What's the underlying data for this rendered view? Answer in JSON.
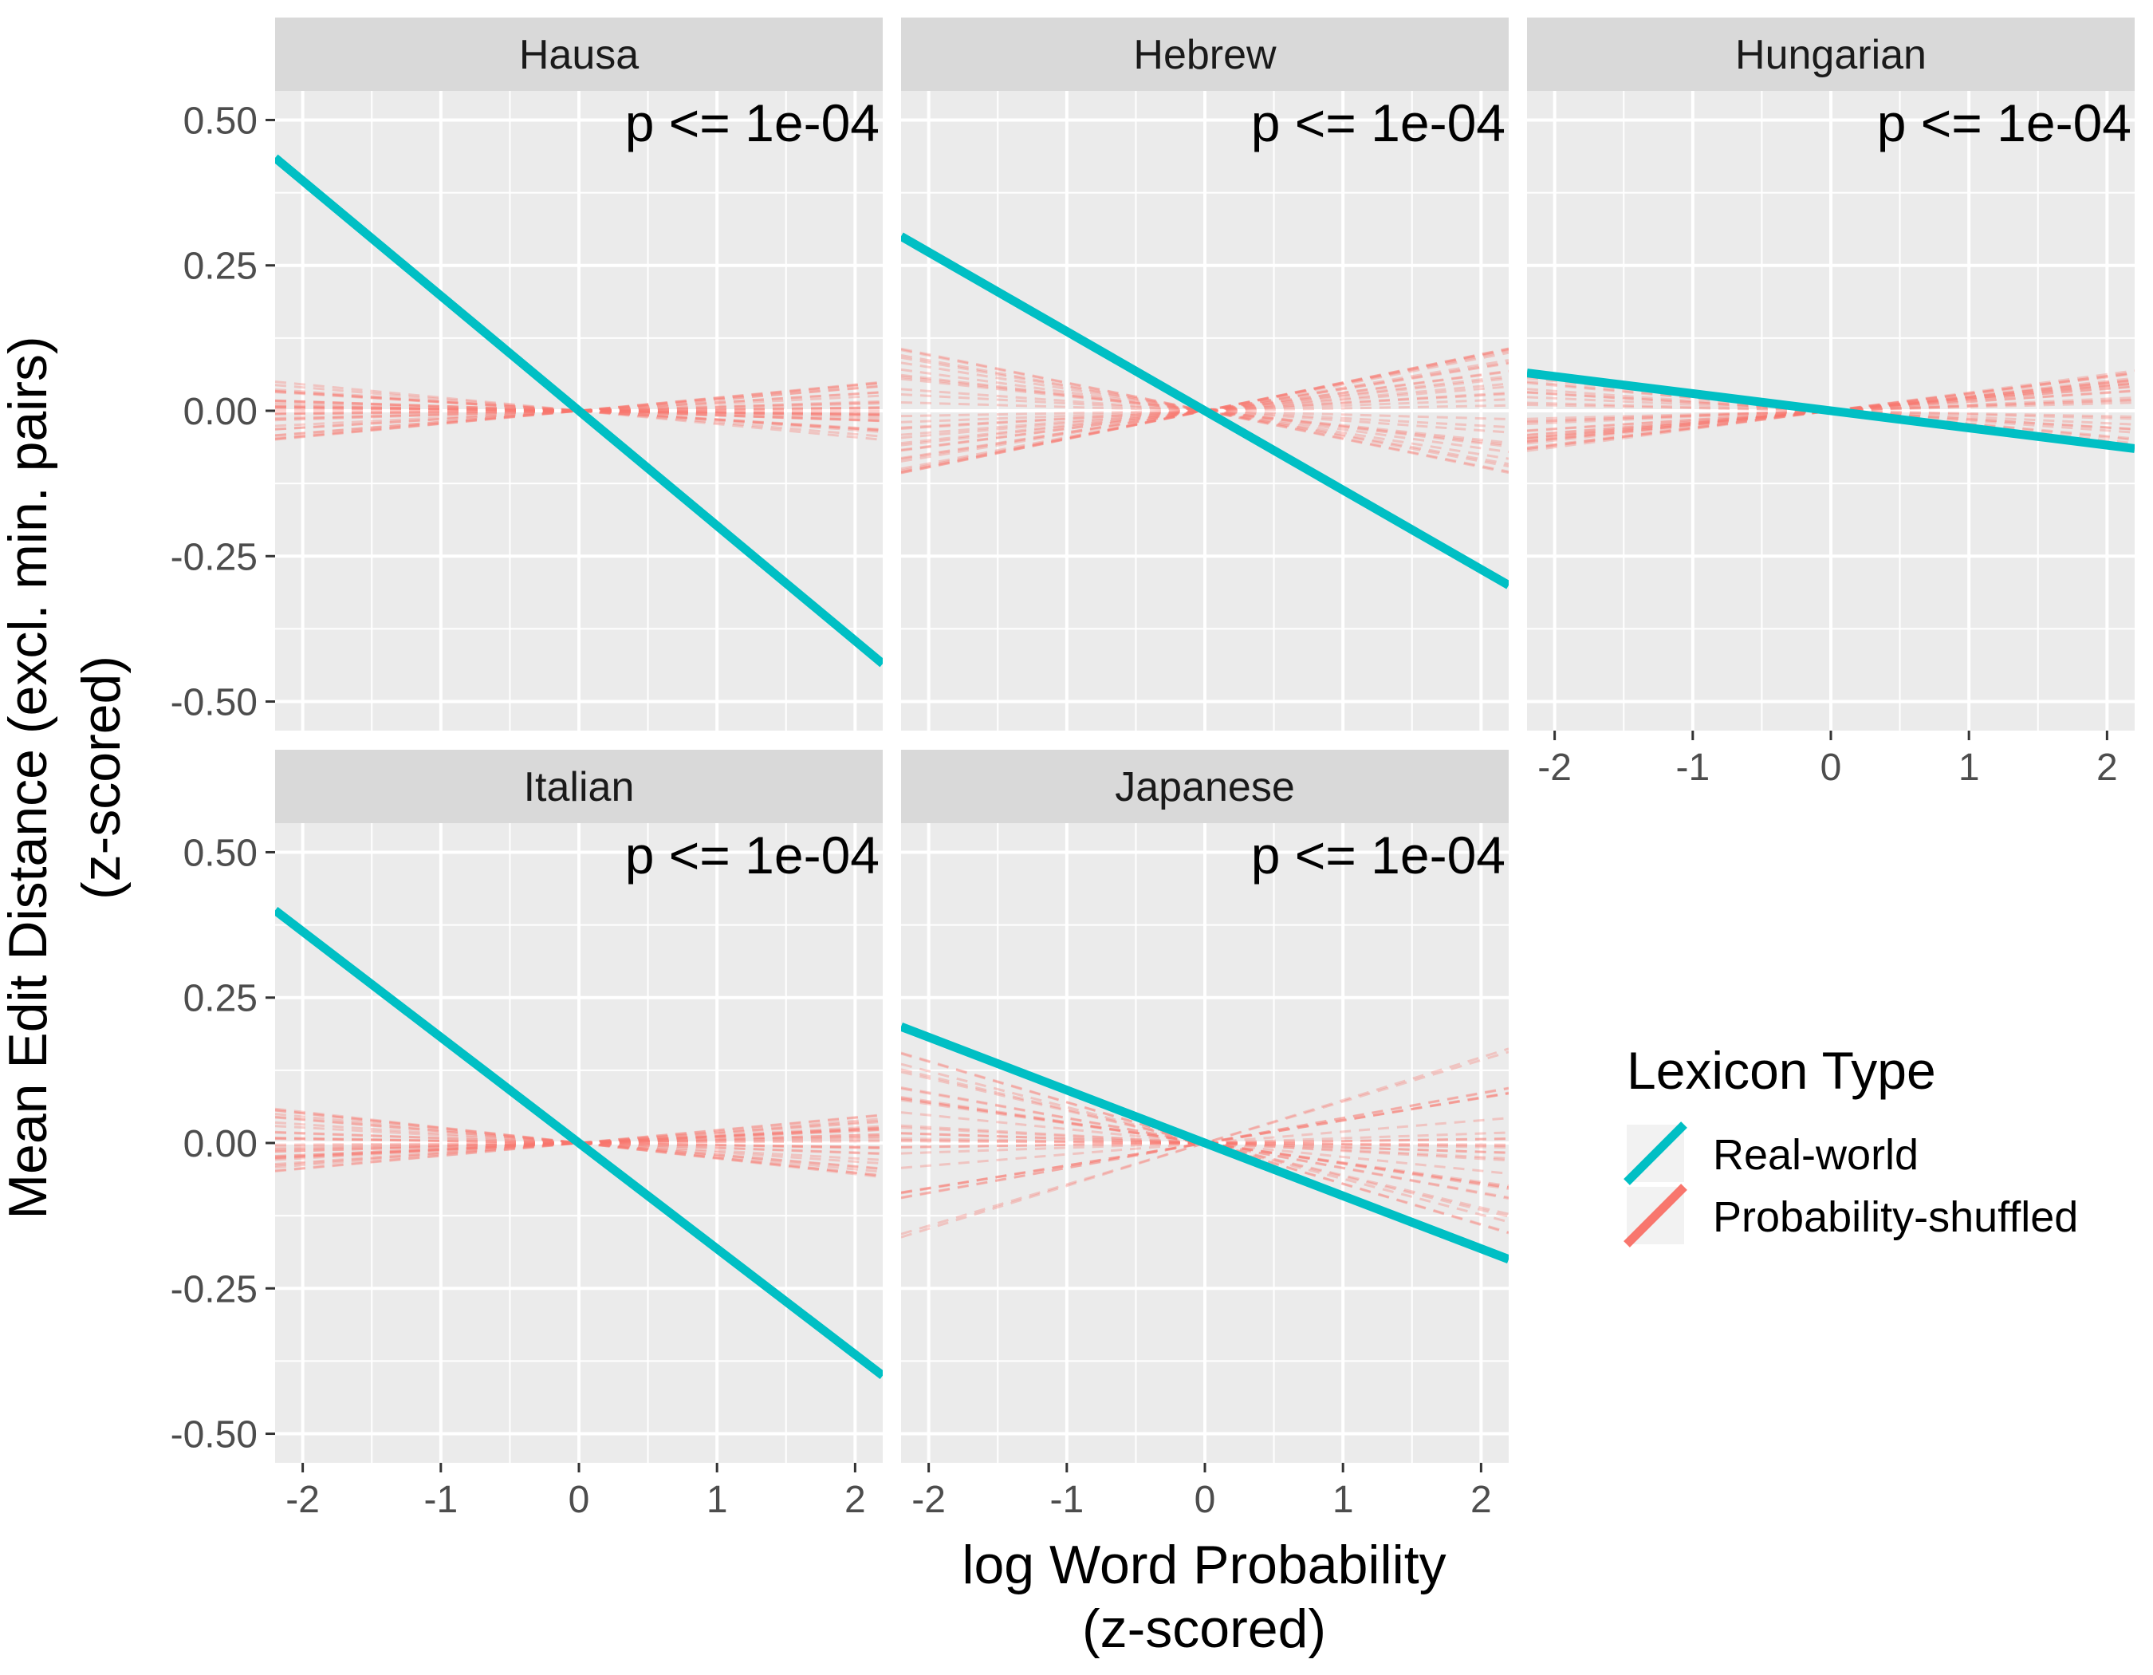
{
  "chart_data": {
    "type": "line",
    "xlabel": [
      "log Word Probability",
      "(z-scored)"
    ],
    "ylabel": [
      "Mean Edit Distance (excl. min. pairs)",
      "(z-scored)"
    ],
    "xlim": [
      -2.2,
      2.2
    ],
    "ylim": [
      -0.55,
      0.55
    ],
    "x_ticks": [
      -2,
      -1,
      0,
      1,
      2
    ],
    "x_tick_labels": [
      "-2",
      "-1",
      "0",
      "1",
      "2"
    ],
    "y_ticks": [
      0.5,
      0.25,
      0,
      -0.25,
      -0.5
    ],
    "y_tick_labels": [
      "0.50",
      "0.25",
      "0.00",
      "-0.25",
      "-0.50"
    ],
    "grid": true,
    "legend": {
      "title": "Lexicon Type",
      "position": "right",
      "entries": [
        {
          "label": "Real-world",
          "color": "#00BFC4"
        },
        {
          "label": "Probability-shuffled",
          "color": "#F8766D"
        }
      ]
    },
    "panels": [
      {
        "name": "Hausa",
        "annotation": "p <= 1e-04",
        "real_world": {
          "x": [
            -2.2,
            2.2
          ],
          "y": [
            0.435,
            -0.435
          ]
        },
        "shuffled_spread": 0.05
      },
      {
        "name": "Hebrew",
        "annotation": "p <= 1e-04",
        "real_world": {
          "x": [
            -2.2,
            2.2
          ],
          "y": [
            0.3,
            -0.3
          ]
        },
        "shuffled_spread": 0.11
      },
      {
        "name": "Hungarian",
        "annotation": "p <= 1e-04",
        "real_world": {
          "x": [
            -2.2,
            2.2
          ],
          "y": [
            0.065,
            -0.065
          ]
        },
        "shuffled_spread": 0.075
      },
      {
        "name": "Italian",
        "annotation": "p <= 1e-04",
        "real_world": {
          "x": [
            -2.2,
            2.2
          ],
          "y": [
            0.4,
            -0.4
          ]
        },
        "shuffled_spread": 0.06
      },
      {
        "name": "Japanese",
        "annotation": "p <= 1e-04",
        "real_world": {
          "x": [
            -2.2,
            2.2
          ],
          "y": [
            0.2,
            -0.2
          ]
        },
        "shuffled_spread": 0.165
      }
    ]
  }
}
